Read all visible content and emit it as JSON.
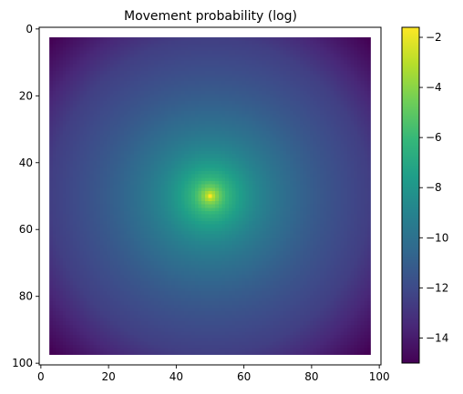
{
  "chart_data": {
    "type": "heatmap",
    "title": "Movement probability (log)",
    "xlabel": "",
    "ylabel": "",
    "x_ticks": [
      0,
      20,
      40,
      60,
      80,
      100
    ],
    "y_ticks": [
      0,
      20,
      40,
      60,
      80,
      100
    ],
    "xlim": [
      -0.5,
      100.5
    ],
    "ylim": [
      100.5,
      -0.5
    ],
    "y_axis_inverted": true,
    "grid": false,
    "data_extent": {
      "x": [
        2.5,
        97.5
      ],
      "y": [
        2.5,
        97.5
      ]
    },
    "peak": {
      "x": 50,
      "y": 50,
      "value": -1.6
    },
    "values_description": "log probability decreasing radially from the center",
    "center_value": -1.6,
    "edge_midpoint_value": -12.5,
    "corner_value": -15.0,
    "colorbar": {
      "ticks": [
        -14,
        -12,
        -10,
        -8,
        -6,
        -4,
        -2
      ],
      "range": [
        -15.0,
        -1.6
      ],
      "colormap": "viridis",
      "colormap_stops": [
        "#440154",
        "#482878",
        "#3e4a89",
        "#31688e",
        "#26828e",
        "#1f9e89",
        "#35b779",
        "#6ece58",
        "#b5de2b",
        "#fde725"
      ]
    }
  }
}
